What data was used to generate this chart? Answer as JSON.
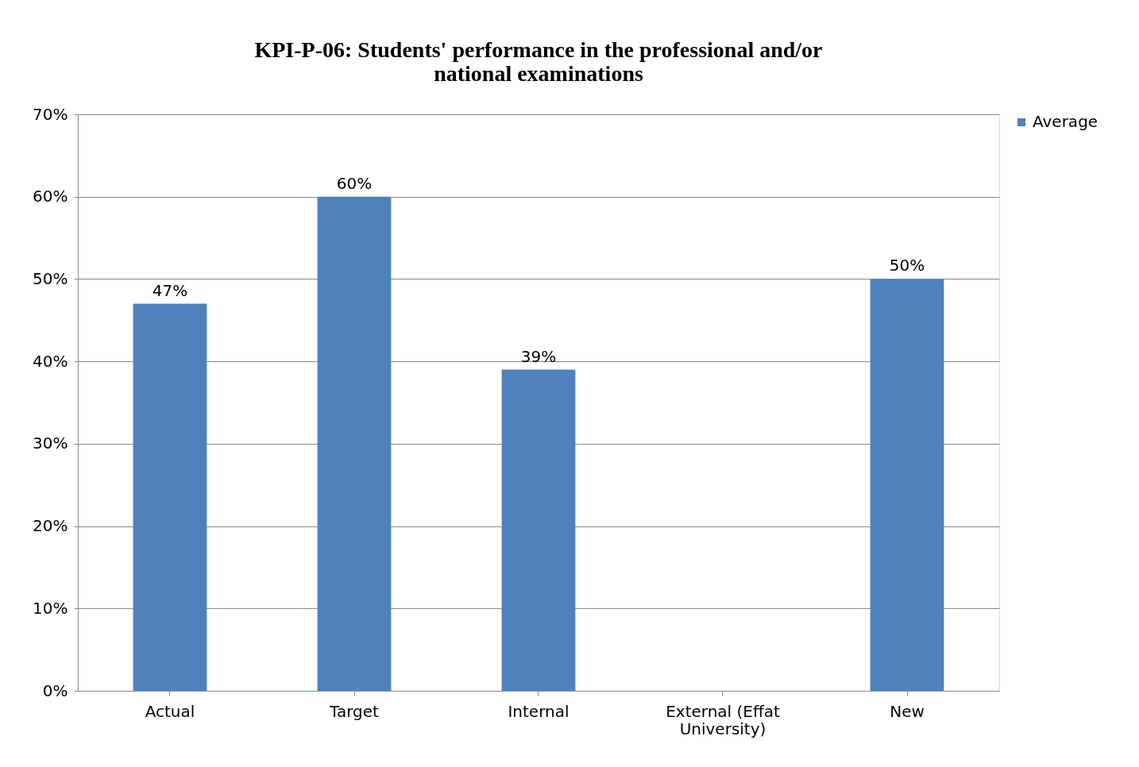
{
  "chart_data": {
    "type": "bar",
    "title": "KPI-P-06: Students' performance in the professional and/or national examinations",
    "categories": [
      "Actual",
      "Target",
      "Internal",
      "External (Effat University)",
      "New"
    ],
    "series": [
      {
        "name": "Average",
        "color": "#4f81bd",
        "values": [
          47,
          60,
          39,
          null,
          50
        ],
        "value_labels": [
          "47%",
          "60%",
          "39%",
          null,
          "50%"
        ]
      }
    ],
    "ylim": [
      0,
      70
    ],
    "yticks": [
      {
        "value": 0,
        "label": "0%"
      },
      {
        "value": 10,
        "label": "10%"
      },
      {
        "value": 20,
        "label": "20%"
      },
      {
        "value": 30,
        "label": "30%"
      },
      {
        "value": 40,
        "label": "40%"
      },
      {
        "value": 50,
        "label": "50%"
      },
      {
        "value": 60,
        "label": "60%"
      },
      {
        "value": 70,
        "label": "70%"
      }
    ],
    "grid": "y",
    "legend": "right"
  }
}
